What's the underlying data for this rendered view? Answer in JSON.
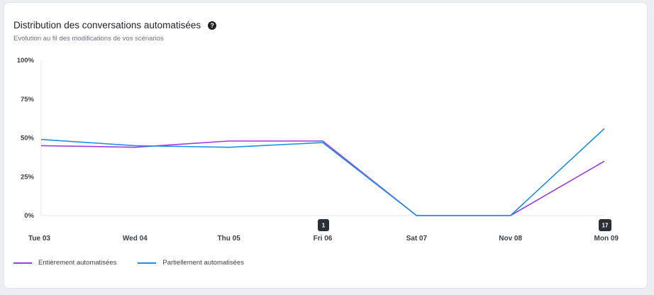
{
  "card": {
    "title": "Distribution des conversations automatisées",
    "help_symbol": "?",
    "subtitle": "Evolution au fil des modifications de vos scénarios"
  },
  "chart_data": {
    "type": "line",
    "categories": [
      "Tue 03",
      "Wed 04",
      "Thu 05",
      "Fri 06",
      "Sat 07",
      "Nov 08",
      "Mon 09"
    ],
    "series": [
      {
        "name": "Entièrement automatisées",
        "color": "#9b3fe0",
        "values": [
          45,
          44,
          48,
          48,
          0,
          0,
          35
        ]
      },
      {
        "name": "Partiellement automatisées",
        "color": "#1e8fe6",
        "values": [
          49,
          45,
          44,
          47,
          0,
          0,
          56
        ]
      }
    ],
    "y_ticks": [
      "100%",
      "75%",
      "50%",
      "25%",
      "0%"
    ],
    "ylim": [
      0,
      100
    ],
    "markers": [
      {
        "category": "Fri 06",
        "label": "1"
      },
      {
        "category": "Mon 09",
        "label": "17"
      }
    ],
    "legend_position": "bottom-left"
  }
}
